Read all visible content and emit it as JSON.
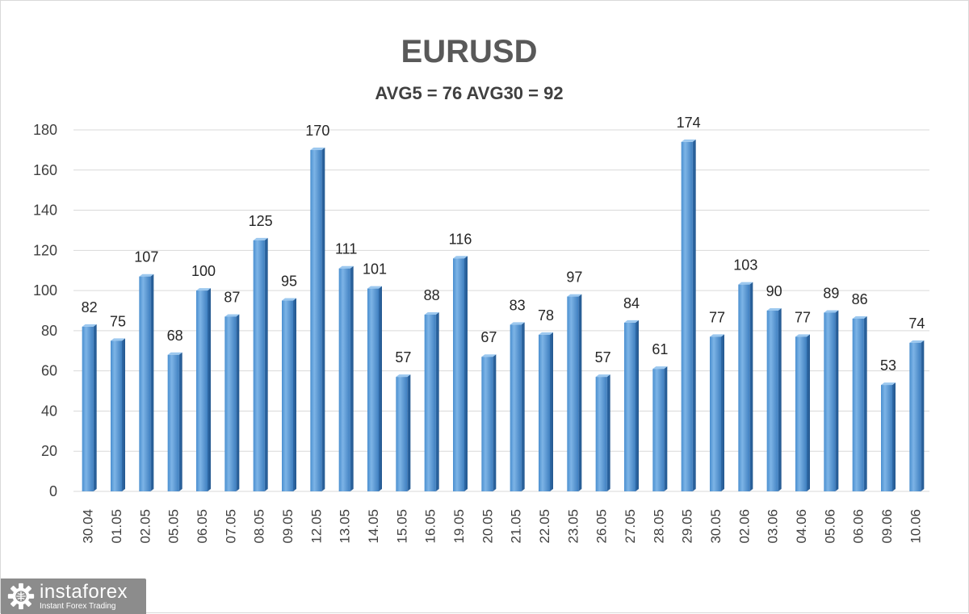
{
  "chart_data": {
    "type": "bar",
    "title": "EURUSD",
    "subtitle": "AVG5 = 76 AVG30 = 92",
    "categories": [
      "30.04",
      "01.05",
      "02.05",
      "05.05",
      "06.05",
      "07.05",
      "08.05",
      "09.05",
      "12.05",
      "13.05",
      "14.05",
      "15.05",
      "16.05",
      "19.05",
      "20.05",
      "21.05",
      "22.05",
      "23.05",
      "26.05",
      "27.05",
      "28.05",
      "29.05",
      "30.05",
      "02.06",
      "03.06",
      "04.06",
      "05.06",
      "06.06",
      "09.06",
      "10.06"
    ],
    "values": [
      82,
      75,
      107,
      68,
      100,
      87,
      125,
      95,
      170,
      111,
      101,
      57,
      88,
      116,
      67,
      83,
      78,
      97,
      57,
      84,
      61,
      174,
      77,
      103,
      90,
      77,
      89,
      86,
      53,
      74
    ],
    "ylim": [
      0,
      180
    ],
    "yticks": [
      0,
      20,
      40,
      60,
      80,
      100,
      120,
      140,
      160,
      180
    ],
    "grid": true,
    "bar_color": "#5b9bd5",
    "data_labels": true
  },
  "logo": {
    "brand": "instaforex",
    "tagline": "Instant Forex Trading",
    "icon": "gear-globe-icon"
  }
}
